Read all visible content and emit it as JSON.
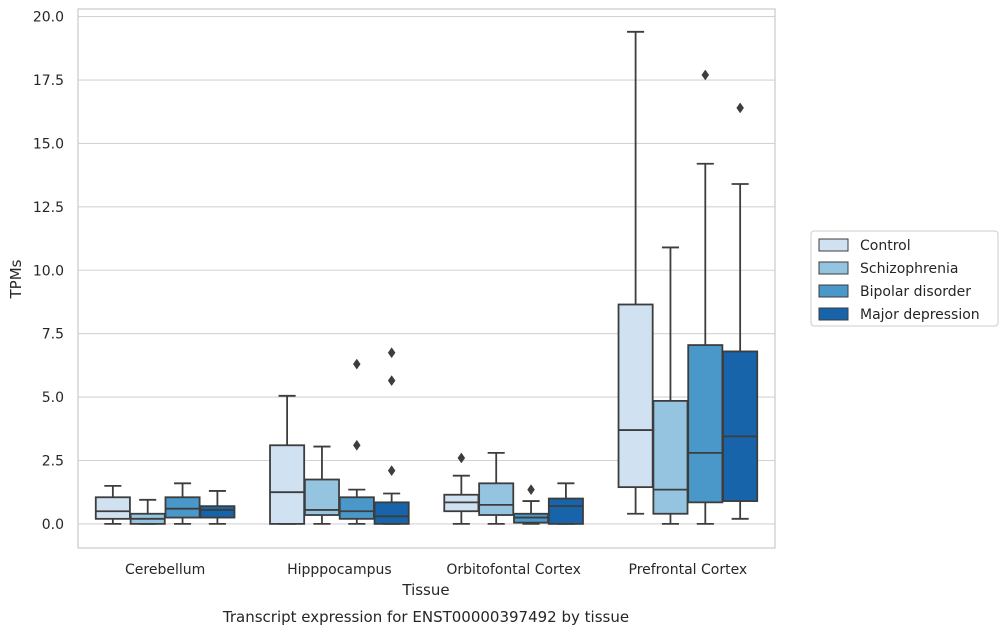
{
  "chart_data": {
    "type": "box",
    "caption": "Transcript expression for ENST00000397492 by tissue",
    "xlabel": "Tissue",
    "ylabel": "TPMs",
    "ylim": [
      -0.95,
      20.3
    ],
    "yticks": [
      "0.0",
      "2.5",
      "5.0",
      "7.5",
      "10.0",
      "12.5",
      "15.0",
      "17.5",
      "20.0"
    ],
    "ytick_values": [
      0,
      2.5,
      5,
      7.5,
      10,
      12.5,
      15,
      17.5,
      20
    ],
    "grid": "horizontal",
    "legend_position": "right",
    "categories": [
      "Cerebellum",
      "Hipppocampus",
      "Orbitofontal Cortex",
      "Prefrontal Cortex"
    ],
    "series": [
      {
        "name": "Control",
        "color": "#d0e1f2",
        "boxes": [
          {
            "whislo": 0.0,
            "q1": 0.2,
            "med": 0.5,
            "q3": 1.05,
            "whishi": 1.5,
            "fliers": []
          },
          {
            "whislo": 0.0,
            "q1": 0.0,
            "med": 1.25,
            "q3": 3.1,
            "whishi": 5.05,
            "fliers": []
          },
          {
            "whislo": 0.0,
            "q1": 0.5,
            "med": 0.85,
            "q3": 1.15,
            "whishi": 1.9,
            "fliers": [
              2.6
            ]
          },
          {
            "whislo": 0.4,
            "q1": 1.45,
            "med": 3.7,
            "q3": 8.65,
            "whishi": 19.4,
            "fliers": []
          }
        ]
      },
      {
        "name": "Schizophrenia",
        "color": "#94c4df",
        "boxes": [
          {
            "whislo": 0.0,
            "q1": 0.0,
            "med": 0.2,
            "q3": 0.4,
            "whishi": 0.95,
            "fliers": []
          },
          {
            "whislo": 0.0,
            "q1": 0.35,
            "med": 0.55,
            "q3": 1.75,
            "whishi": 3.05,
            "fliers": []
          },
          {
            "whislo": 0.0,
            "q1": 0.35,
            "med": 0.75,
            "q3": 1.6,
            "whishi": 2.8,
            "fliers": []
          },
          {
            "whislo": 0.0,
            "q1": 0.4,
            "med": 1.35,
            "q3": 4.85,
            "whishi": 10.9,
            "fliers": []
          }
        ]
      },
      {
        "name": "Bipolar disorder",
        "color": "#4a98c9",
        "boxes": [
          {
            "whislo": 0.0,
            "q1": 0.25,
            "med": 0.6,
            "q3": 1.05,
            "whishi": 1.6,
            "fliers": []
          },
          {
            "whislo": 0.0,
            "q1": 0.2,
            "med": 0.5,
            "q3": 1.05,
            "whishi": 1.35,
            "fliers": [
              3.1,
              6.3
            ]
          },
          {
            "whislo": 0.0,
            "q1": 0.05,
            "med": 0.25,
            "q3": 0.4,
            "whishi": 0.9,
            "fliers": [
              1.35
            ]
          },
          {
            "whislo": 0.0,
            "q1": 0.85,
            "med": 2.8,
            "q3": 7.05,
            "whishi": 14.2,
            "fliers": [
              17.7
            ]
          }
        ]
      },
      {
        "name": "Major depression",
        "color": "#1764ab",
        "boxes": [
          {
            "whislo": 0.0,
            "q1": 0.25,
            "med": 0.55,
            "q3": 0.7,
            "whishi": 1.3,
            "fliers": []
          },
          {
            "whislo": 0.0,
            "q1": 0.0,
            "med": 0.3,
            "q3": 0.85,
            "whishi": 1.2,
            "fliers": [
              2.1,
              5.65,
              6.75
            ]
          },
          {
            "whislo": 0.0,
            "q1": 0.0,
            "med": 0.7,
            "q3": 1.0,
            "whishi": 1.6,
            "fliers": []
          },
          {
            "whislo": 0.2,
            "q1": 0.9,
            "med": 3.45,
            "q3": 6.8,
            "whishi": 13.4,
            "fliers": [
              16.4
            ]
          }
        ]
      }
    ]
  }
}
